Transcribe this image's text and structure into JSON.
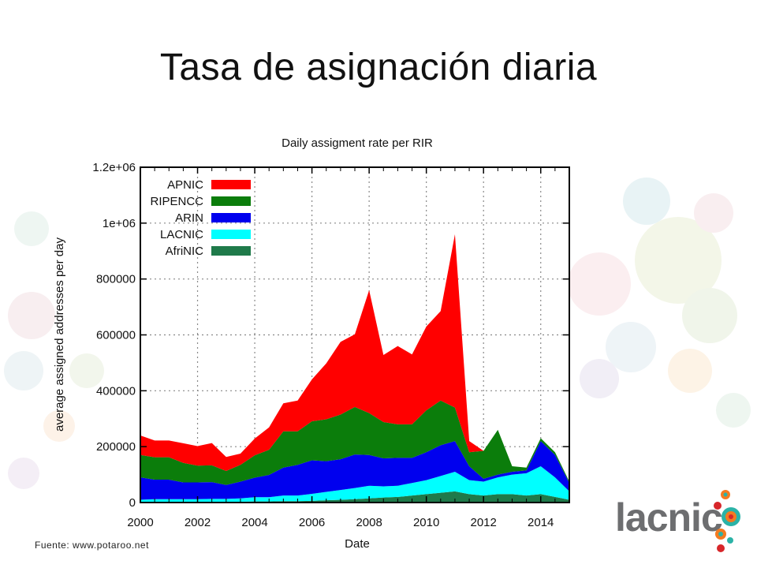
{
  "slide": {
    "title": "Tasa de asignación diaria",
    "source": "Fuente: www.potaroo.net",
    "logo_text": "lacnic"
  },
  "colors": {
    "APNIC": "#ff0000",
    "RIPENCC": "#0b7d0b",
    "ARIN": "#0000ee",
    "LACNIC": "#00ffff",
    "AfriNIC": "#1f7a4a",
    "logo_dot_orange": "#f47b20",
    "logo_dot_teal": "#2bb3a7",
    "logo_dot_red": "#d7262a"
  },
  "chart_data": {
    "type": "area",
    "title": "Daily assigment rate per RIR",
    "xlabel": "Date",
    "ylabel": "average assigned addresses per day",
    "xlim": [
      2000,
      2015
    ],
    "ylim": [
      0,
      1200000
    ],
    "x_ticks": [
      2000,
      2002,
      2004,
      2006,
      2008,
      2010,
      2012,
      2014
    ],
    "x_tick_labels": [
      "2000",
      "2002",
      "2004",
      "2006",
      "2008",
      "2010",
      "2012",
      "2014"
    ],
    "y_ticks": [
      0,
      200000,
      400000,
      600000,
      800000,
      1000000,
      1200000
    ],
    "y_tick_labels": [
      "0",
      "200000",
      "400000",
      "600000",
      "800000",
      "1e+06",
      "1.2e+06"
    ],
    "grid": true,
    "legend_position": "top-left",
    "stacked": true,
    "x": [
      2000,
      2000.5,
      2001,
      2001.5,
      2002,
      2002.5,
      2003,
      2003.5,
      2004,
      2004.5,
      2005,
      2005.5,
      2006,
      2006.5,
      2007,
      2007.5,
      2008,
      2008.5,
      2009,
      2009.5,
      2010,
      2010.5,
      2011,
      2011.5,
      2012,
      2012.5,
      2013,
      2013.5,
      2014,
      2014.5,
      2015
    ],
    "series": [
      {
        "name": "AfriNIC",
        "values": [
          2000,
          2000,
          2000,
          2000,
          2000,
          3000,
          3000,
          3000,
          4000,
          4000,
          5000,
          5000,
          6000,
          8000,
          10000,
          12000,
          15000,
          18000,
          20000,
          25000,
          30000,
          35000,
          40000,
          30000,
          25000,
          30000,
          30000,
          25000,
          30000,
          20000,
          10000
        ]
      },
      {
        "name": "LACNIC",
        "values": [
          8000,
          10000,
          10000,
          10000,
          10000,
          10000,
          10000,
          12000,
          15000,
          15000,
          20000,
          20000,
          25000,
          30000,
          35000,
          40000,
          45000,
          40000,
          40000,
          45000,
          50000,
          60000,
          70000,
          50000,
          50000,
          60000,
          70000,
          80000,
          100000,
          70000,
          30000
        ]
      },
      {
        "name": "ARIN",
        "values": [
          80000,
          70000,
          70000,
          60000,
          60000,
          60000,
          50000,
          60000,
          70000,
          80000,
          100000,
          110000,
          120000,
          110000,
          110000,
          120000,
          110000,
          100000,
          100000,
          90000,
          100000,
          110000,
          110000,
          50000,
          10000,
          10000,
          10000,
          10000,
          90000,
          80000,
          30000
        ]
      },
      {
        "name": "RIPENCC",
        "values": [
          80000,
          80000,
          80000,
          70000,
          60000,
          60000,
          50000,
          60000,
          80000,
          90000,
          130000,
          120000,
          140000,
          150000,
          160000,
          170000,
          150000,
          130000,
          120000,
          120000,
          150000,
          160000,
          120000,
          50000,
          100000,
          160000,
          20000,
          10000,
          10000,
          10000,
          5000
        ]
      },
      {
        "name": "APNIC",
        "values": [
          70000,
          60000,
          60000,
          70000,
          70000,
          80000,
          50000,
          40000,
          60000,
          80000,
          100000,
          110000,
          150000,
          200000,
          260000,
          260000,
          440000,
          240000,
          280000,
          250000,
          300000,
          320000,
          620000,
          40000,
          0,
          0,
          0,
          0,
          0,
          0,
          0
        ]
      }
    ]
  }
}
